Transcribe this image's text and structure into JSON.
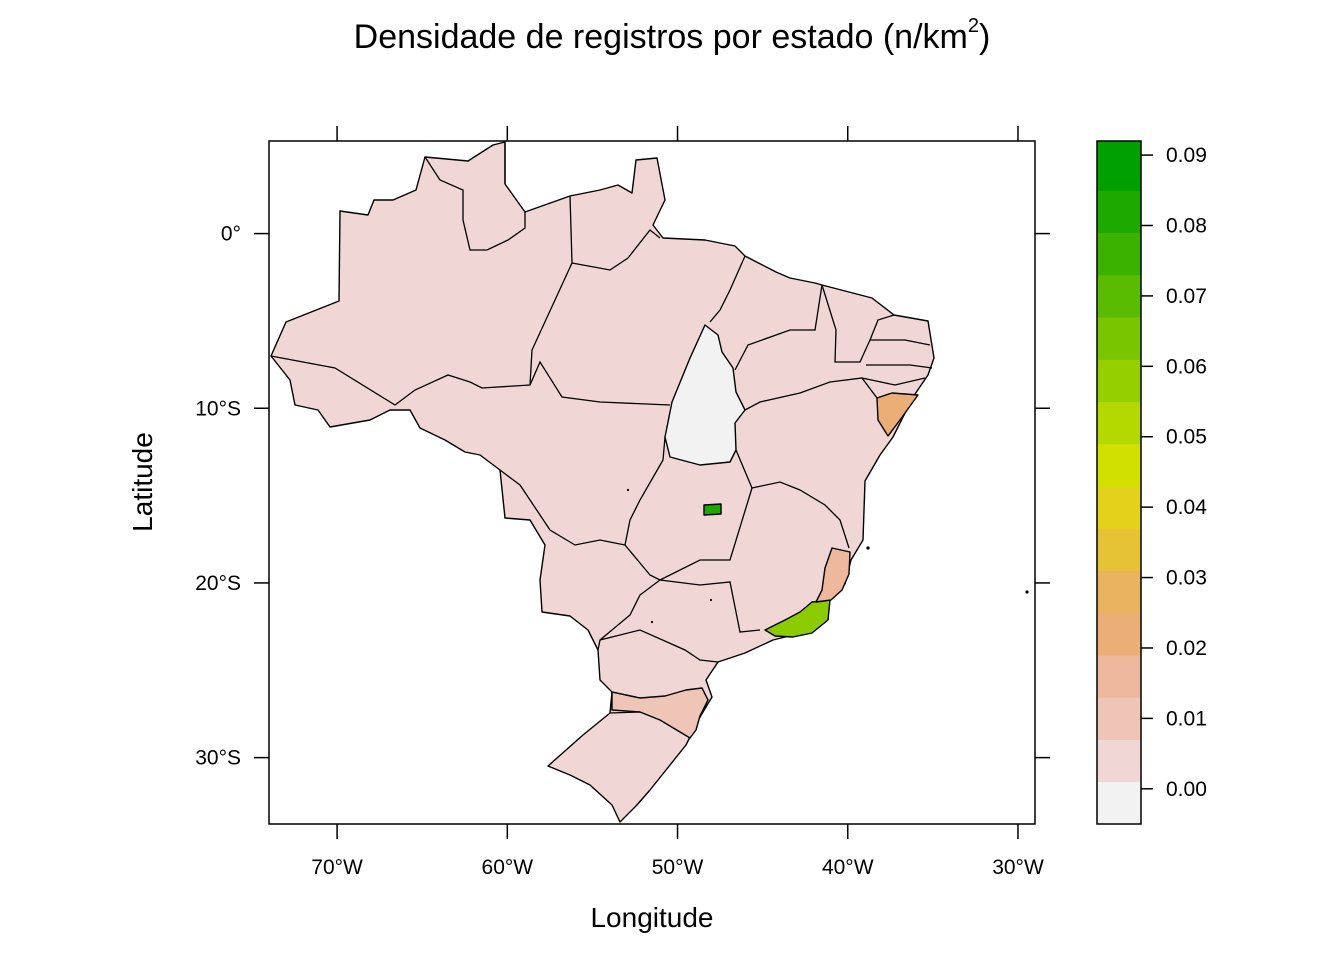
{
  "title": {
    "main": "Densidade de registros por estado (n/km",
    "sup": "2",
    "close": ")"
  },
  "x_axis": {
    "label": "Longitude",
    "range": [
      -74,
      -29
    ],
    "ticks": [
      {
        "value": -70,
        "label": "70°W"
      },
      {
        "value": -60,
        "label": "60°W"
      },
      {
        "value": -50,
        "label": "50°W"
      },
      {
        "value": -40,
        "label": "40°W"
      },
      {
        "value": -30,
        "label": "30°W"
      }
    ]
  },
  "y_axis": {
    "label": "Latitude",
    "range": [
      -33.8,
      5.3
    ],
    "ticks": [
      {
        "value": 0,
        "label": "0°"
      },
      {
        "value": -10,
        "label": "10°S"
      },
      {
        "value": -20,
        "label": "20°S"
      },
      {
        "value": -30,
        "label": "30°S"
      }
    ]
  },
  "colorkey": {
    "range": [
      -0.005,
      0.092
    ],
    "bins": [
      {
        "from": -0.005,
        "to": 0.001,
        "color": "#F2F2F2"
      },
      {
        "from": 0.001,
        "to": 0.007,
        "color": "#F0D7D5"
      },
      {
        "from": 0.007,
        "to": 0.013,
        "color": "#EEC5B7"
      },
      {
        "from": 0.013,
        "to": 0.019,
        "color": "#EEB89E"
      },
      {
        "from": 0.019,
        "to": 0.025,
        "color": "#EBAE77"
      },
      {
        "from": 0.025,
        "to": 0.031,
        "color": "#E9B35F"
      },
      {
        "from": 0.031,
        "to": 0.037,
        "color": "#E6C235"
      },
      {
        "from": 0.037,
        "to": 0.043,
        "color": "#E3D21B"
      },
      {
        "from": 0.043,
        "to": 0.049,
        "color": "#D2E000"
      },
      {
        "from": 0.049,
        "to": 0.055,
        "color": "#B4D900"
      },
      {
        "from": 0.055,
        "to": 0.061,
        "color": "#96CF00"
      },
      {
        "from": 0.061,
        "to": 0.067,
        "color": "#78C500"
      },
      {
        "from": 0.067,
        "to": 0.073,
        "color": "#5ABC00"
      },
      {
        "from": 0.073,
        "to": 0.079,
        "color": "#3CB200"
      },
      {
        "from": 0.079,
        "to": 0.085,
        "color": "#1EA900"
      },
      {
        "from": 0.085,
        "to": 0.092,
        "color": "#00A000"
      }
    ],
    "ticks": [
      {
        "value": 0.0,
        "label": "0.00"
      },
      {
        "value": 0.01,
        "label": "0.01"
      },
      {
        "value": 0.02,
        "label": "0.02"
      },
      {
        "value": 0.03,
        "label": "0.03"
      },
      {
        "value": 0.04,
        "label": "0.04"
      },
      {
        "value": 0.05,
        "label": "0.05"
      },
      {
        "value": 0.06,
        "label": "0.06"
      },
      {
        "value": 0.07,
        "label": "0.07"
      },
      {
        "value": 0.08,
        "label": "0.08"
      },
      {
        "value": 0.09,
        "label": "0.09"
      }
    ]
  },
  "colors": {
    "base": "#F0D7D5",
    "tocantins": "#F2F2F2",
    "df": "#1EA900",
    "rj": "#8BCB00",
    "sc": "#EEC5B7",
    "es": "#EEB89E",
    "se": "#EBAE77"
  },
  "map": {
    "region": "Brazil",
    "value_scale": "density of records per km² by state"
  }
}
